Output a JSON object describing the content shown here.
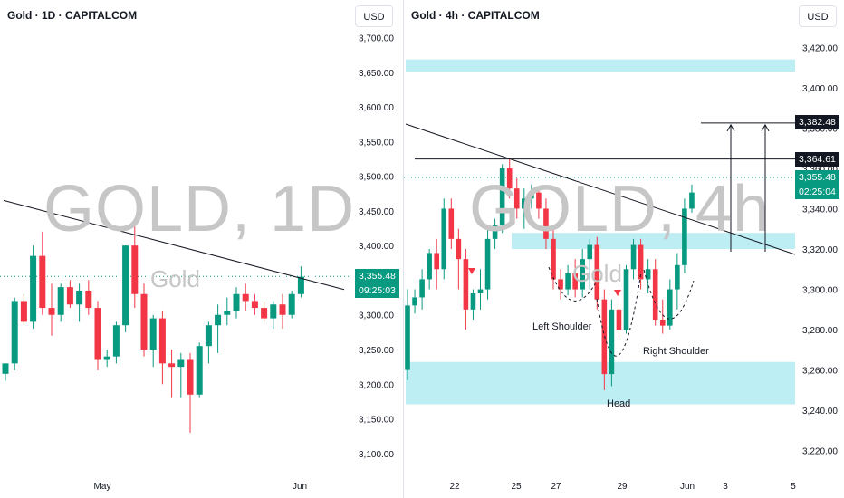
{
  "left": {
    "title": "Gold · 1D · CAPITALCOM",
    "currency": "USD",
    "watermark": "GOLD, 1D",
    "watermark_sub": "Gold",
    "price_label": "3,355.48",
    "countdown": "09:25:03",
    "x_ticks": [
      "May",
      "Jun"
    ],
    "colors": {
      "up": "#089981",
      "down": "#f23645",
      "line": "#131722",
      "grid_dotted": "#089981"
    }
  },
  "right": {
    "title": "Gold · 4h · CAPITALCOM",
    "currency": "USD",
    "watermark": "GOLD, 4h",
    "watermark_sub": "Gold",
    "price_label": "3,355.48",
    "countdown": "02:25:04",
    "level_1": "3,364.61",
    "level_2": "3,382.48",
    "annotations": {
      "left_shoulder": "Left Shoulder",
      "head": "Head",
      "right_shoulder": "Right Shoulder"
    },
    "x_ticks": [
      "22",
      "25",
      "27",
      "29",
      "Jun",
      "3",
      "5"
    ],
    "zone_color": "#b2ebf2"
  },
  "chart_data": [
    {
      "type": "candlestick",
      "title": "Gold · 1D · CAPITALCOM",
      "y_axis_ticks": [
        "3,700.00",
        "3,650.00",
        "3,600.00",
        "3,550.00",
        "3,500.00",
        "3,450.00",
        "3,400.00",
        "3,350.00",
        "3,300.00",
        "3,250.00",
        "3,200.00",
        "3,150.00",
        "3,100.00"
      ],
      "ylim": [
        3075,
        3715
      ],
      "x_ticks": [
        "May",
        "Jun"
      ],
      "current_price": 3355.48,
      "candles": [
        [
          3215,
          3230,
          3205,
          3230
        ],
        [
          3230,
          3325,
          3220,
          3320
        ],
        [
          3320,
          3330,
          3285,
          3290
        ],
        [
          3290,
          3400,
          3280,
          3385
        ],
        [
          3385,
          3420,
          3300,
          3310
        ],
        [
          3310,
          3345,
          3270,
          3300
        ],
        [
          3300,
          3345,
          3290,
          3340
        ],
        [
          3340,
          3350,
          3310,
          3315
        ],
        [
          3315,
          3345,
          3290,
          3335
        ],
        [
          3335,
          3350,
          3300,
          3310
        ],
        [
          3310,
          3320,
          3220,
          3235
        ],
        [
          3235,
          3250,
          3225,
          3240
        ],
        [
          3240,
          3290,
          3230,
          3285
        ],
        [
          3285,
          3400,
          3275,
          3400
        ],
        [
          3400,
          3430,
          3310,
          3330
        ],
        [
          3330,
          3345,
          3240,
          3250
        ],
        [
          3250,
          3300,
          3225,
          3295
        ],
        [
          3295,
          3305,
          3200,
          3230
        ],
        [
          3230,
          3250,
          3180,
          3225
        ],
        [
          3225,
          3245,
          3180,
          3235
        ],
        [
          3235,
          3245,
          3130,
          3185
        ],
        [
          3185,
          3260,
          3180,
          3255
        ],
        [
          3255,
          3290,
          3230,
          3285
        ],
        [
          3285,
          3315,
          3245,
          3300
        ],
        [
          3300,
          3325,
          3285,
          3305
        ],
        [
          3305,
          3340,
          3295,
          3330
        ],
        [
          3330,
          3345,
          3305,
          3320
        ],
        [
          3320,
          3330,
          3300,
          3310
        ],
        [
          3310,
          3320,
          3290,
          3295
        ],
        [
          3295,
          3320,
          3280,
          3315
        ],
        [
          3315,
          3330,
          3280,
          3300
        ],
        [
          3300,
          3335,
          3295,
          3330
        ],
        [
          3330,
          3370,
          3325,
          3355
        ]
      ],
      "trendline": [
        [
          3465,
          0
        ],
        [
          3350,
          33
        ]
      ]
    },
    {
      "type": "candlestick",
      "title": "Gold · 4h · CAPITALCOM",
      "y_axis_ticks": [
        "3,420.00",
        "3,400.00",
        "3,380.00",
        "3,360.00",
        "3,340.00",
        "3,320.00",
        "3,300.00",
        "3,280.00",
        "3,260.00",
        "3,240.00",
        "3,220.00"
      ],
      "ylim": [
        3210,
        3430
      ],
      "x_ticks": [
        "22",
        "25",
        "27",
        "29",
        "Jun",
        "3",
        "5"
      ],
      "current_price": 3355.48,
      "levels": [
        3364.61,
        3382.48
      ],
      "zones": [
        [
          3408,
          3414
        ],
        [
          3320,
          3328
        ],
        [
          3243,
          3264
        ]
      ],
      "annotations": [
        "Left Shoulder",
        "Head",
        "Right Shoulder"
      ],
      "candles": [
        [
          3260,
          3300,
          3255,
          3292
        ],
        [
          3292,
          3300,
          3288,
          3296
        ],
        [
          3296,
          3310,
          3290,
          3305
        ],
        [
          3305,
          3320,
          3300,
          3318
        ],
        [
          3318,
          3325,
          3300,
          3310
        ],
        [
          3310,
          3345,
          3305,
          3340
        ],
        [
          3340,
          3345,
          3320,
          3325
        ],
        [
          3325,
          3330,
          3300,
          3315
        ],
        [
          3315,
          3320,
          3280,
          3290
        ],
        [
          3290,
          3300,
          3285,
          3298
        ],
        [
          3298,
          3310,
          3290,
          3300
        ],
        [
          3300,
          3330,
          3295,
          3325
        ],
        [
          3325,
          3335,
          3320,
          3332
        ],
        [
          3332,
          3362,
          3328,
          3360
        ],
        [
          3360,
          3365,
          3345,
          3350
        ],
        [
          3350,
          3355,
          3335,
          3340
        ],
        [
          3340,
          3350,
          3330,
          3345
        ],
        [
          3345,
          3352,
          3340,
          3348
        ],
        [
          3348,
          3350,
          3335,
          3340
        ],
        [
          3340,
          3345,
          3320,
          3325
        ],
        [
          3325,
          3332,
          3300,
          3305
        ],
        [
          3305,
          3310,
          3295,
          3300
        ],
        [
          3300,
          3312,
          3297,
          3308
        ],
        [
          3308,
          3315,
          3296,
          3300
        ],
        [
          3300,
          3320,
          3296,
          3315
        ],
        [
          3315,
          3325,
          3300,
          3322
        ],
        [
          3322,
          3326,
          3290,
          3295
        ],
        [
          3295,
          3300,
          3250,
          3258
        ],
        [
          3258,
          3295,
          3252,
          3290
        ],
        [
          3290,
          3300,
          3275,
          3280
        ],
        [
          3280,
          3312,
          3278,
          3310
        ],
        [
          3310,
          3325,
          3305,
          3322
        ],
        [
          3322,
          3325,
          3300,
          3305
        ],
        [
          3305,
          3315,
          3298,
          3310
        ],
        [
          3310,
          3315,
          3282,
          3285
        ],
        [
          3285,
          3295,
          3278,
          3282
        ],
        [
          3282,
          3305,
          3280,
          3300
        ],
        [
          3300,
          3318,
          3290,
          3312
        ],
        [
          3312,
          3345,
          3308,
          3340
        ],
        [
          3340,
          3352,
          3338,
          3348
        ]
      ],
      "trendline": [
        [
          3385,
          0
        ],
        [
          3318,
          48
        ]
      ]
    }
  ]
}
